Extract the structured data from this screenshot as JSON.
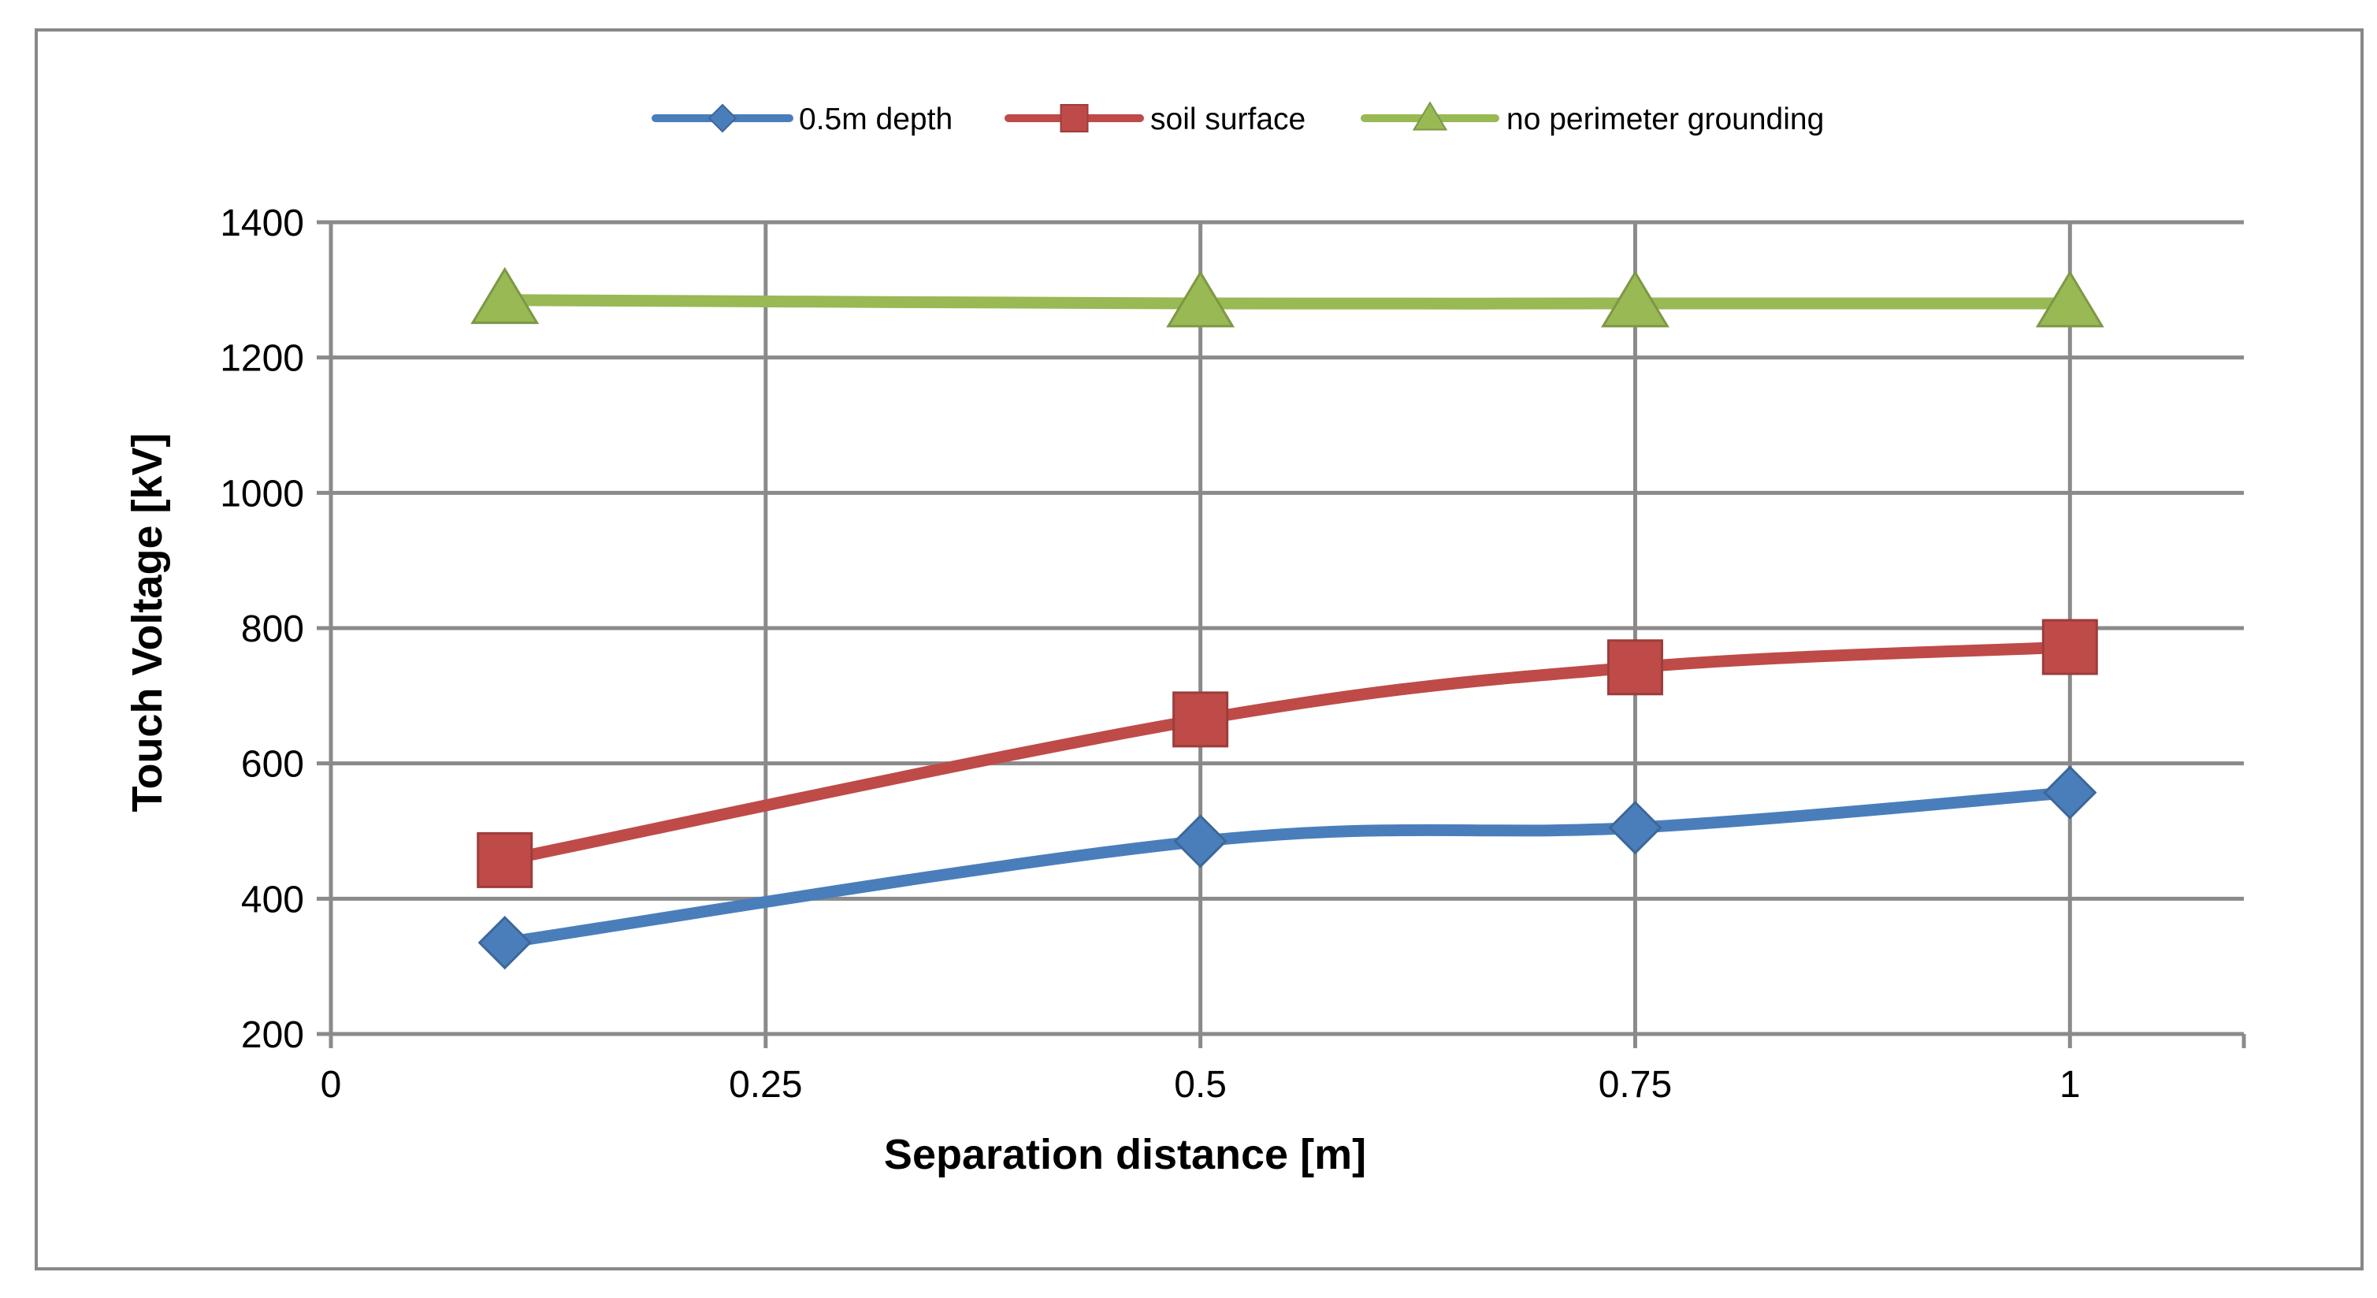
{
  "chart_data": {
    "type": "line",
    "title": "",
    "xlabel": "Separation distance [m]",
    "ylabel": "Touch Voltage [kV]",
    "xlim": [
      0,
      1.1
    ],
    "ylim": [
      200,
      1400
    ],
    "x_ticks": [
      0,
      0.25,
      0.5,
      0.75,
      1
    ],
    "x_tick_labels": [
      "0",
      "0.25",
      "0.5",
      "0.75",
      "1"
    ],
    "y_ticks": [
      200,
      400,
      600,
      800,
      1000,
      1200,
      1400
    ],
    "y_tick_labels": [
      "200",
      "400",
      "600",
      "800",
      "1000",
      "1200",
      "1400"
    ],
    "grid": true,
    "legend_position": "top",
    "x": [
      0.1,
      0.5,
      0.75,
      1.0
    ],
    "series": [
      {
        "name": "0.5m depth",
        "values": [
          335,
          485,
          505,
          557
        ],
        "color": "#4A7EBB",
        "marker": "diamond"
      },
      {
        "name": "soil surface",
        "values": [
          457,
          665,
          742,
          772
        ],
        "color": "#BE4B48",
        "marker": "square"
      },
      {
        "name": "no perimeter grounding",
        "values": [
          1285,
          1280,
          1280,
          1280
        ],
        "color": "#98B954",
        "marker": "triangle"
      }
    ]
  }
}
